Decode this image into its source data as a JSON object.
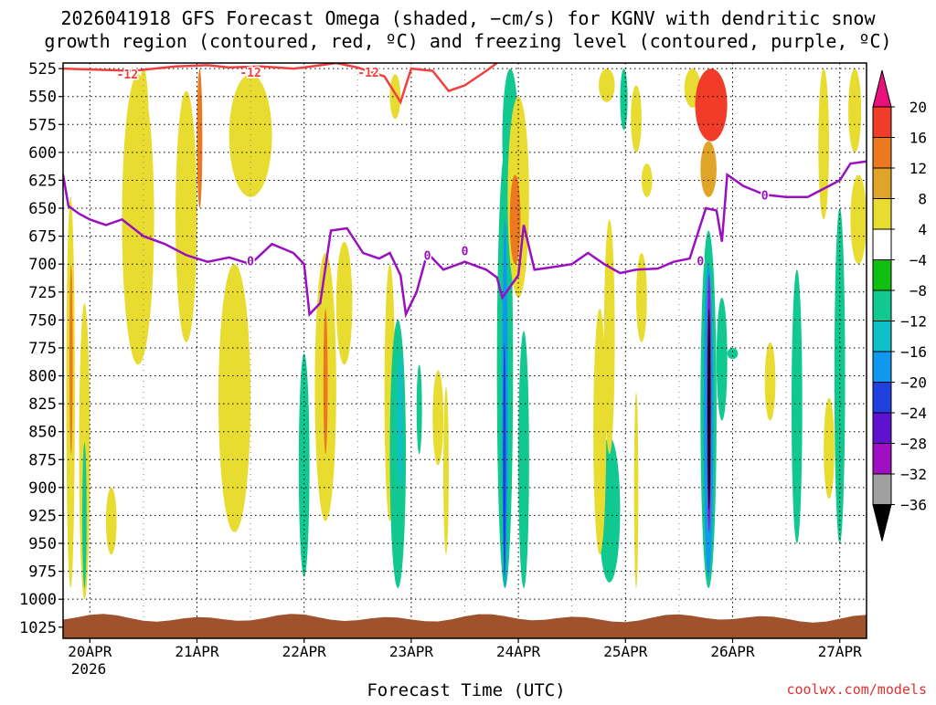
{
  "title_line1": "2026041918 GFS Forecast Omega (shaded, −cm/s) for KGNV with dendritic snow",
  "title_line2": "growth region (contoured, red, ºC) and freezing level (contoured, purple, ºC)",
  "watermark": "coolwx.com/models",
  "chart_data": {
    "type": "heatmap",
    "xlabel": "Forecast Time (UTC)",
    "x_ticks": [
      "20APR",
      "21APR",
      "22APR",
      "23APR",
      "24APR",
      "25APR",
      "26APR",
      "27APR"
    ],
    "x_year": "2026",
    "x_range_days": [
      19.75,
      27.25
    ],
    "y_axis": "pressure (hPa), reversed",
    "y_ticks": [
      525,
      550,
      575,
      600,
      625,
      650,
      675,
      700,
      725,
      750,
      775,
      800,
      825,
      850,
      875,
      900,
      925,
      950,
      975,
      1000,
      1025
    ],
    "y_range": [
      1035,
      520
    ],
    "grid": "dotted",
    "colorbar": {
      "ticks": [
        "20",
        "16",
        "12",
        "8",
        "4",
        "−4",
        "−8",
        "−12",
        "−16",
        "−20",
        "−24",
        "−28",
        "−32",
        "−36"
      ],
      "colors": [
        "#e8107a",
        "#f03c28",
        "#ec7820",
        "#e0a428",
        "#e8dc30",
        "#ffffff",
        "#10c010",
        "#10c890",
        "#10c0c8",
        "#1098f0",
        "#2040e0",
        "#6010d0",
        "#a010c0",
        "#a0a0a0",
        "#000000"
      ]
    },
    "contours": [
      {
        "label": "-12",
        "color": "#f04040"
      },
      {
        "label": "0",
        "color": "#9a10c0"
      }
    ],
    "freezing_level": [
      [
        19.75,
        620
      ],
      [
        19.8,
        648
      ],
      [
        19.9,
        655
      ],
      [
        20.0,
        660
      ],
      [
        20.15,
        665
      ],
      [
        20.3,
        660
      ],
      [
        20.5,
        675
      ],
      [
        20.7,
        682
      ],
      [
        20.9,
        692
      ],
      [
        21.1,
        698
      ],
      [
        21.3,
        694
      ],
      [
        21.5,
        700
      ],
      [
        21.7,
        682
      ],
      [
        21.9,
        690
      ],
      [
        22.0,
        700
      ],
      [
        22.05,
        745
      ],
      [
        22.15,
        735
      ],
      [
        22.25,
        670
      ],
      [
        22.4,
        668
      ],
      [
        22.55,
        690
      ],
      [
        22.7,
        695
      ],
      [
        22.8,
        690
      ],
      [
        22.9,
        710
      ],
      [
        22.95,
        745
      ],
      [
        23.05,
        725
      ],
      [
        23.15,
        690
      ],
      [
        23.3,
        705
      ],
      [
        23.5,
        698
      ],
      [
        23.7,
        705
      ],
      [
        23.8,
        712
      ],
      [
        23.85,
        730
      ],
      [
        24.0,
        710
      ],
      [
        24.05,
        665
      ],
      [
        24.15,
        705
      ],
      [
        24.3,
        703
      ],
      [
        24.5,
        700
      ],
      [
        24.65,
        690
      ],
      [
        24.8,
        700
      ],
      [
        24.95,
        708
      ],
      [
        25.1,
        705
      ],
      [
        25.3,
        704
      ],
      [
        25.45,
        698
      ],
      [
        25.6,
        695
      ],
      [
        25.75,
        650
      ],
      [
        25.85,
        652
      ],
      [
        25.9,
        680
      ],
      [
        25.95,
        620
      ],
      [
        26.1,
        630
      ],
      [
        26.3,
        638
      ],
      [
        26.5,
        640
      ],
      [
        26.7,
        640
      ],
      [
        26.9,
        630
      ],
      [
        27.0,
        625
      ],
      [
        27.1,
        610
      ],
      [
        27.25,
        608
      ]
    ],
    "dgz_top": [
      [
        19.75,
        525
      ],
      [
        20.4,
        527
      ],
      [
        20.8,
        523
      ],
      [
        21.1,
        522
      ],
      [
        21.3,
        524
      ],
      [
        21.6,
        523
      ],
      [
        21.9,
        525
      ],
      [
        22.0,
        524
      ],
      [
        22.3,
        520
      ],
      [
        22.5,
        524
      ],
      [
        22.75,
        532
      ],
      [
        22.9,
        555
      ],
      [
        23.0,
        525
      ],
      [
        23.2,
        527
      ],
      [
        23.35,
        545
      ],
      [
        23.5,
        540
      ],
      [
        23.7,
        527
      ],
      [
        23.8,
        520
      ]
    ],
    "omega_fields": [
      {
        "x": [
          19.78,
          19.86
        ],
        "p": [
          640,
          990
        ],
        "value": 6
      },
      {
        "x": [
          19.81,
          19.84
        ],
        "p": [
          700,
          870
        ],
        "value": 14
      },
      {
        "x": [
          19.9,
          20.0
        ],
        "p": [
          735,
          1000
        ],
        "value": 6
      },
      {
        "x": [
          19.93,
          19.97
        ],
        "p": [
          860,
          990
        ],
        "value": -8
      },
      {
        "x": [
          20.15,
          20.25
        ],
        "p": [
          900,
          960
        ],
        "value": 6
      },
      {
        "x": [
          20.3,
          20.6
        ],
        "p": [
          530,
          790
        ],
        "value": 5
      },
      {
        "x": [
          20.45,
          20.55
        ],
        "p": [
          525,
          630
        ],
        "value": 6
      },
      {
        "x": [
          20.8,
          21.0
        ],
        "p": [
          545,
          770
        ],
        "value": 5
      },
      {
        "x": [
          21.0,
          21.05
        ],
        "p": [
          525,
          650
        ],
        "value": 12
      },
      {
        "x": [
          21.2,
          21.5
        ],
        "p": [
          700,
          940
        ],
        "value": 5
      },
      {
        "x": [
          21.3,
          21.7
        ],
        "p": [
          530,
          640
        ],
        "value": 5
      },
      {
        "x": [
          21.95,
          22.05
        ],
        "p": [
          780,
          980
        ],
        "value": -8
      },
      {
        "x": [
          22.1,
          22.3
        ],
        "p": [
          690,
          930
        ],
        "value": 5
      },
      {
        "x": [
          22.18,
          22.22
        ],
        "p": [
          740,
          870
        ],
        "value": 12
      },
      {
        "x": [
          22.3,
          22.45
        ],
        "p": [
          680,
          790
        ],
        "value": 5
      },
      {
        "x": [
          22.75,
          22.85
        ],
        "p": [
          700,
          930
        ],
        "value": 5
      },
      {
        "x": [
          22.8,
          22.9
        ],
        "p": [
          530,
          570
        ],
        "value": 5
      },
      {
        "x": [
          22.8,
          22.95
        ],
        "p": [
          750,
          990
        ],
        "value": -8
      },
      {
        "x": [
          22.87,
          22.92
        ],
        "p": [
          780,
          900
        ],
        "value": -12
      },
      {
        "x": [
          23.05,
          23.1
        ],
        "p": [
          790,
          870
        ],
        "value": -8
      },
      {
        "x": [
          23.2,
          23.3
        ],
        "p": [
          795,
          880
        ],
        "value": 5
      },
      {
        "x": [
          23.3,
          23.35
        ],
        "p": [
          810,
          960
        ],
        "value": 5
      },
      {
        "x": [
          23.8,
          23.95
        ],
        "p": [
          600,
          990
        ],
        "value": -8
      },
      {
        "x": [
          23.85,
          23.9
        ],
        "p": [
          660,
          990
        ],
        "value": -16
      },
      {
        "x": [
          23.86,
          23.88
        ],
        "p": [
          770,
          980
        ],
        "value": -20
      },
      {
        "x": [
          23.85,
          24.0
        ],
        "p": [
          525,
          650
        ],
        "value": -8
      },
      {
        "x": [
          23.9,
          24.1
        ],
        "p": [
          550,
          730
        ],
        "value": 5
      },
      {
        "x": [
          23.92,
          24.02
        ],
        "p": [
          620,
          700
        ],
        "value": 12
      },
      {
        "x": [
          24.0,
          24.1
        ],
        "p": [
          760,
          990
        ],
        "value": -8
      },
      {
        "x": [
          24.75,
          24.9
        ],
        "p": [
          525,
          555
        ],
        "value": 5
      },
      {
        "x": [
          24.75,
          24.95
        ],
        "p": [
          855,
          985
        ],
        "value": -8
      },
      {
        "x": [
          24.8,
          24.9
        ],
        "p": [
          660,
          870
        ],
        "value": 5
      },
      {
        "x": [
          24.7,
          24.82
        ],
        "p": [
          740,
          960
        ],
        "value": 5
      },
      {
        "x": [
          24.95,
          25.02
        ],
        "p": [
          525,
          580
        ],
        "value": -8
      },
      {
        "x": [
          25.05,
          25.15
        ],
        "p": [
          540,
          600
        ],
        "value": 5
      },
      {
        "x": [
          25.15,
          25.25
        ],
        "p": [
          610,
          640
        ],
        "value": 5
      },
      {
        "x": [
          25.1,
          25.2
        ],
        "p": [
          690,
          770
        ],
        "value": 5
      },
      {
        "x": [
          25.08,
          25.12
        ],
        "p": [
          815,
          990
        ],
        "value": 5
      },
      {
        "x": [
          25.55,
          25.7
        ],
        "p": [
          525,
          560
        ],
        "value": 5
      },
      {
        "x": [
          25.65,
          25.95
        ],
        "p": [
          525,
          590
        ],
        "value": 18
      },
      {
        "x": [
          25.7,
          25.85
        ],
        "p": [
          590,
          640
        ],
        "value": 8
      },
      {
        "x": [
          25.7,
          25.85
        ],
        "p": [
          670,
          990
        ],
        "value": -8
      },
      {
        "x": [
          25.73,
          25.82
        ],
        "p": [
          700,
          980
        ],
        "value": -16
      },
      {
        "x": [
          25.76,
          25.8
        ],
        "p": [
          710,
          940
        ],
        "value": -28
      },
      {
        "x": [
          25.77,
          25.79
        ],
        "p": [
          740,
          920
        ],
        "value": -40
      },
      {
        "x": [
          25.85,
          25.95
        ],
        "p": [
          730,
          840
        ],
        "value": -8
      },
      {
        "x": [
          25.95,
          26.05
        ],
        "p": [
          775,
          785
        ],
        "value": -8
      },
      {
        "x": [
          26.3,
          26.4
        ],
        "p": [
          770,
          840
        ],
        "value": 5
      },
      {
        "x": [
          26.55,
          26.65
        ],
        "p": [
          705,
          950
        ],
        "value": -8
      },
      {
        "x": [
          26.8,
          26.9
        ],
        "p": [
          525,
          660
        ],
        "value": 5
      },
      {
        "x": [
          26.85,
          26.95
        ],
        "p": [
          820,
          910
        ],
        "value": 5
      },
      {
        "x": [
          26.95,
          27.05
        ],
        "p": [
          650,
          950
        ],
        "value": -8
      },
      {
        "x": [
          27.08,
          27.2
        ],
        "p": [
          525,
          600
        ],
        "value": 5
      },
      {
        "x": [
          27.1,
          27.25
        ],
        "p": [
          620,
          700
        ],
        "value": 5
      }
    ]
  }
}
